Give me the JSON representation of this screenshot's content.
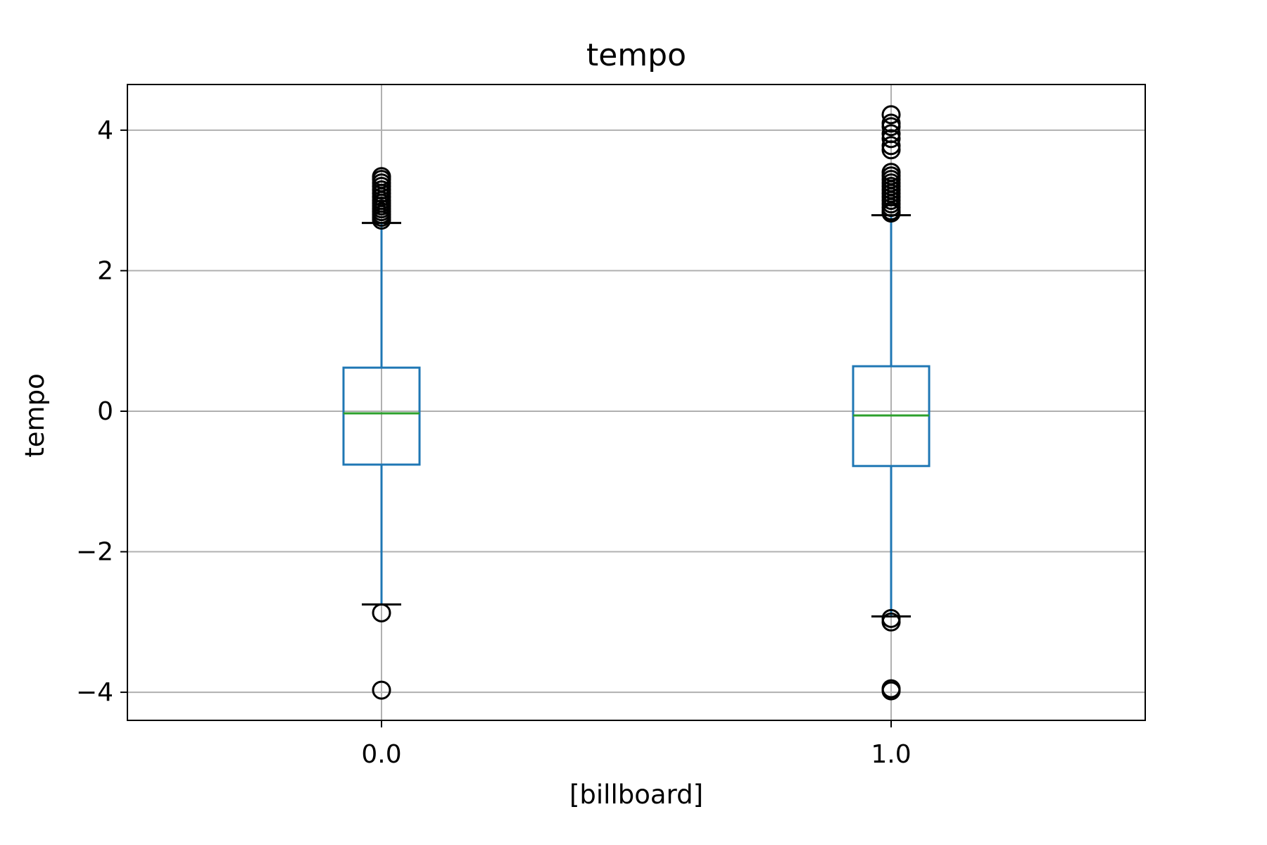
{
  "chart_data": {
    "type": "box",
    "title": "tempo",
    "xlabel": "[billboard]",
    "ylabel": "tempo",
    "categories": [
      "0.0",
      "1.0"
    ],
    "ylim": [
      -4.4,
      4.65
    ],
    "yticks": [
      4,
      2,
      0,
      -2,
      -4
    ],
    "ytick_labels": [
      "4",
      "2",
      "0",
      "−2",
      "−4"
    ],
    "grid": true,
    "colors": {
      "box": "#1f77b4",
      "median": "#2ca02c",
      "whisker_cap": "#000000",
      "flier": "#000000",
      "grid": "#b0b0b0"
    },
    "boxes": [
      {
        "category": "0.0",
        "whisker_low": -2.75,
        "q1": -0.76,
        "median": -0.03,
        "q3": 0.62,
        "whisker_high": 2.68,
        "fliers": [
          3.34,
          3.3,
          3.25,
          3.2,
          3.15,
          3.1,
          3.05,
          3.0,
          2.96,
          2.92,
          2.88,
          2.84,
          2.8,
          2.76,
          2.72,
          -2.87,
          -3.97
        ]
      },
      {
        "category": "1.0",
        "whisker_low": -2.92,
        "q1": -0.78,
        "median": -0.06,
        "q3": 0.64,
        "whisker_high": 2.79,
        "fliers": [
          4.22,
          4.1,
          4.05,
          3.95,
          3.88,
          3.78,
          3.72,
          3.4,
          3.35,
          3.3,
          3.25,
          3.2,
          3.15,
          3.1,
          3.05,
          3.0,
          2.95,
          2.9,
          2.85,
          2.82,
          -2.95,
          -3.0,
          -3.95,
          -3.98
        ]
      }
    ]
  }
}
